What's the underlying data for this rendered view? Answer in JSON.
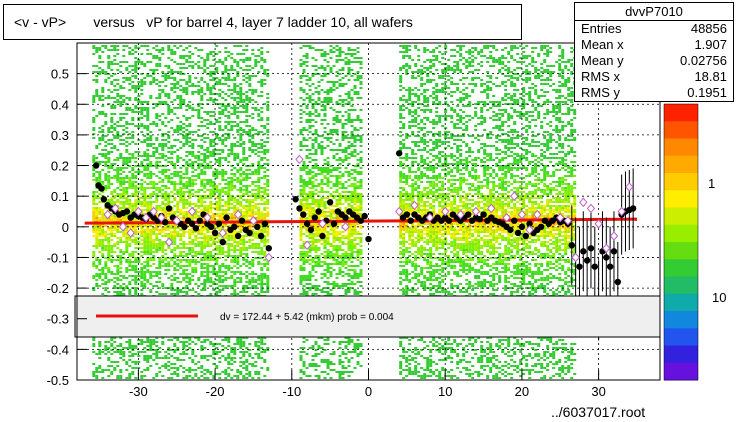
{
  "title": "<v - vP>       versus   vP for barrel 4, layer 7 ladder 10, all wafers",
  "stats": {
    "name": "dvvP7010",
    "rows": [
      {
        "key": "Entries",
        "value": "48856"
      },
      {
        "key": "Mean x",
        "value": "1.907"
      },
      {
        "key": "Mean y",
        "value": "0.02756"
      },
      {
        "key": "RMS x",
        "value": "18.81"
      },
      {
        "key": "RMS y",
        "value": "0.1951"
      }
    ]
  },
  "footer": "../6037017.root",
  "legend": {
    "text": "dv =  172.44 +   5.42 (mkm) prob = 0.004"
  },
  "colors": {
    "fit": "#e8120c",
    "points": "#000000",
    "open_points": "#c060c8"
  },
  "chart_data": {
    "type": "scatter",
    "title": "<v - vP>       versus   vP for barrel 4, layer 7 ladder 10, all wafers",
    "xlabel": "",
    "ylabel": "",
    "xlim": [
      -38,
      38
    ],
    "ylim": [
      -0.5,
      0.6
    ],
    "x_ticks": [
      -30,
      -20,
      -10,
      0,
      10,
      20,
      30
    ],
    "y_ticks": [
      -0.5,
      -0.4,
      -0.3,
      -0.2,
      -0.1,
      0,
      0.1,
      0.2,
      0.3,
      0.4,
      0.5
    ],
    "colorbar_labels": [
      "1",
      "10"
    ],
    "grid": true,
    "fit_line": {
      "x": [
        -37,
        35
      ],
      "y": [
        0.012,
        0.025
      ]
    },
    "band_columns_x": [
      [
        -36,
        -13
      ],
      [
        -9,
        -1
      ],
      [
        4,
        27
      ]
    ],
    "series": [
      {
        "marker": "filled-circle",
        "points": [
          [
            -35.5,
            0.2
          ],
          [
            -35.2,
            0.135
          ],
          [
            -34.8,
            0.125
          ],
          [
            -34.5,
            0.09
          ],
          [
            -34,
            0.07
          ],
          [
            -33.5,
            0.06
          ],
          [
            -33,
            0.05
          ],
          [
            -32.5,
            0.04
          ],
          [
            -32,
            0.045
          ],
          [
            -31.5,
            0.05
          ],
          [
            -31,
            0.03
          ],
          [
            -30.5,
            0.04
          ],
          [
            -30,
            0.035
          ],
          [
            -29.5,
            0.03
          ],
          [
            -29,
            0.025
          ],
          [
            -28.5,
            0.04
          ],
          [
            -28,
            0.03
          ],
          [
            -27.5,
            0.02
          ],
          [
            -27,
            0.035
          ],
          [
            -26.5,
            0.015
          ],
          [
            -26,
            0.06
          ],
          [
            -25.5,
            0.03
          ],
          [
            -25,
            0.02
          ],
          [
            -24.5,
            0.01
          ],
          [
            -24,
            0.0
          ],
          [
            -23.5,
            0.02
          ],
          [
            -23,
            0.01
          ],
          [
            -22.5,
            -0.005
          ],
          [
            -22,
            0.02
          ],
          [
            -21.5,
            0.04
          ],
          [
            -21,
            0.01
          ],
          [
            -20.5,
            0.0
          ],
          [
            -20,
            -0.02
          ],
          [
            -19.5,
            0.01
          ],
          [
            -19,
            -0.05
          ],
          [
            -18.5,
            0.03
          ],
          [
            -18,
            -0.01
          ],
          [
            -17.5,
            0.0
          ],
          [
            -17,
            -0.03
          ],
          [
            -16.5,
            0.02
          ],
          [
            -16,
            -0.01
          ],
          [
            -15.5,
            -0.02
          ],
          [
            -15,
            0.02
          ],
          [
            -14.5,
            0.0
          ],
          [
            -14,
            -0.03
          ],
          [
            -13.5,
            0.01
          ],
          [
            -13,
            -0.07
          ],
          [
            -9.5,
            0.09
          ],
          [
            -9,
            0.06
          ],
          [
            -8.5,
            0.04
          ],
          [
            -8,
            0.01
          ],
          [
            -7.5,
            -0.01
          ],
          [
            -7,
            0.03
          ],
          [
            -6.5,
            0.05
          ],
          [
            -6,
            -0.03
          ],
          [
            -5.5,
            0.02
          ],
          [
            -5,
            0.08
          ],
          [
            -4.5,
            0.01
          ],
          [
            -4,
            0.05
          ],
          [
            -3.5,
            0.04
          ],
          [
            -3,
            0.03
          ],
          [
            -2.5,
            0.05
          ],
          [
            -2,
            0.04
          ],
          [
            -1.5,
            0.03
          ],
          [
            -1,
            0.02
          ],
          [
            -0.5,
            0.035
          ],
          [
            0,
            -0.04
          ],
          [
            4,
            0.24
          ],
          [
            4.5,
            0.03
          ],
          [
            5,
            0.04
          ],
          [
            5.5,
            0.02
          ],
          [
            6,
            0.04
          ],
          [
            6.5,
            0.03
          ],
          [
            7,
            0.02
          ],
          [
            7.5,
            0.03
          ],
          [
            8,
            0.04
          ],
          [
            8.5,
            0.02
          ],
          [
            9,
            0.03
          ],
          [
            9.5,
            0.02
          ],
          [
            10,
            0.03
          ],
          [
            10.5,
            0.02
          ],
          [
            11,
            0.04
          ],
          [
            11.5,
            0.03
          ],
          [
            12,
            0.02
          ],
          [
            12.5,
            0.03
          ],
          [
            13,
            0.04
          ],
          [
            13.5,
            0.02
          ],
          [
            14,
            0.03
          ],
          [
            14.5,
            0.025
          ],
          [
            15,
            0.04
          ],
          [
            15.5,
            0.02
          ],
          [
            16,
            0.03
          ],
          [
            16.5,
            0.02
          ],
          [
            17,
            0.015
          ],
          [
            17.5,
            0.01
          ],
          [
            18,
            0.0
          ],
          [
            18.5,
            -0.01
          ],
          [
            19,
            0.02
          ],
          [
            19.5,
            -0.02
          ],
          [
            20,
            0.0
          ],
          [
            20.5,
            -0.03
          ],
          [
            21,
            0.01
          ],
          [
            21.5,
            -0.02
          ],
          [
            22,
            -0.01
          ],
          [
            22.5,
            0.0
          ],
          [
            23,
            0.02
          ],
          [
            23.5,
            0.01
          ],
          [
            24,
            0.02
          ],
          [
            24.5,
            0.03
          ],
          [
            25,
            0.015
          ],
          [
            25.5,
            0.02
          ],
          [
            26,
            0.01
          ],
          [
            26.5,
            -0.06
          ],
          [
            27,
            -0.1
          ],
          [
            27.5,
            -0.13
          ],
          [
            28,
            -0.08
          ],
          [
            28.5,
            -0.11
          ],
          [
            29,
            -0.07
          ],
          [
            29.5,
            -0.13
          ],
          [
            30,
            -0.24
          ],
          [
            30.5,
            -0.08
          ],
          [
            31,
            -0.1
          ],
          [
            31.5,
            -0.13
          ],
          [
            32,
            -0.08
          ],
          [
            32.5,
            -0.18
          ],
          [
            33,
            0.04
          ],
          [
            33.5,
            0.05
          ],
          [
            34,
            0.055
          ],
          [
            34.5,
            0.06
          ]
        ]
      },
      {
        "marker": "open-diamond",
        "points": [
          [
            -34,
            0.04
          ],
          [
            -33,
            0.06
          ],
          [
            -32,
            0.0
          ],
          [
            -31,
            -0.02
          ],
          [
            -30,
            0.05
          ],
          [
            -29,
            0.03
          ],
          [
            -28,
            0.05
          ],
          [
            -27,
            0.03
          ],
          [
            -26,
            -0.05
          ],
          [
            -25,
            0.02
          ],
          [
            -23,
            0.05
          ],
          [
            -21,
            0.03
          ],
          [
            -19,
            -0.02
          ],
          [
            -17,
            0.04
          ],
          [
            -15,
            0.02
          ],
          [
            -13,
            -0.1
          ],
          [
            -9,
            0.22
          ],
          [
            -8,
            -0.06
          ],
          [
            -6,
            0.01
          ],
          [
            -3,
            0.0
          ],
          [
            4,
            0.05
          ],
          [
            6,
            0.07
          ],
          [
            8,
            0.03
          ],
          [
            10,
            0.05
          ],
          [
            12,
            0.04
          ],
          [
            14,
            0.05
          ],
          [
            16,
            0.06
          ],
          [
            18,
            0.03
          ],
          [
            19,
            0.1
          ],
          [
            20,
            0.04
          ],
          [
            21,
            -0.01
          ],
          [
            22,
            0.04
          ],
          [
            25,
            0.03
          ],
          [
            26,
            0.02
          ],
          [
            27,
            -0.1
          ],
          [
            28,
            0.08
          ],
          [
            29,
            0.06
          ],
          [
            30,
            0.01
          ],
          [
            31,
            -0.07
          ],
          [
            32,
            -0.03
          ],
          [
            33,
            0.05
          ],
          [
            34,
            0.13
          ]
        ]
      }
    ]
  }
}
